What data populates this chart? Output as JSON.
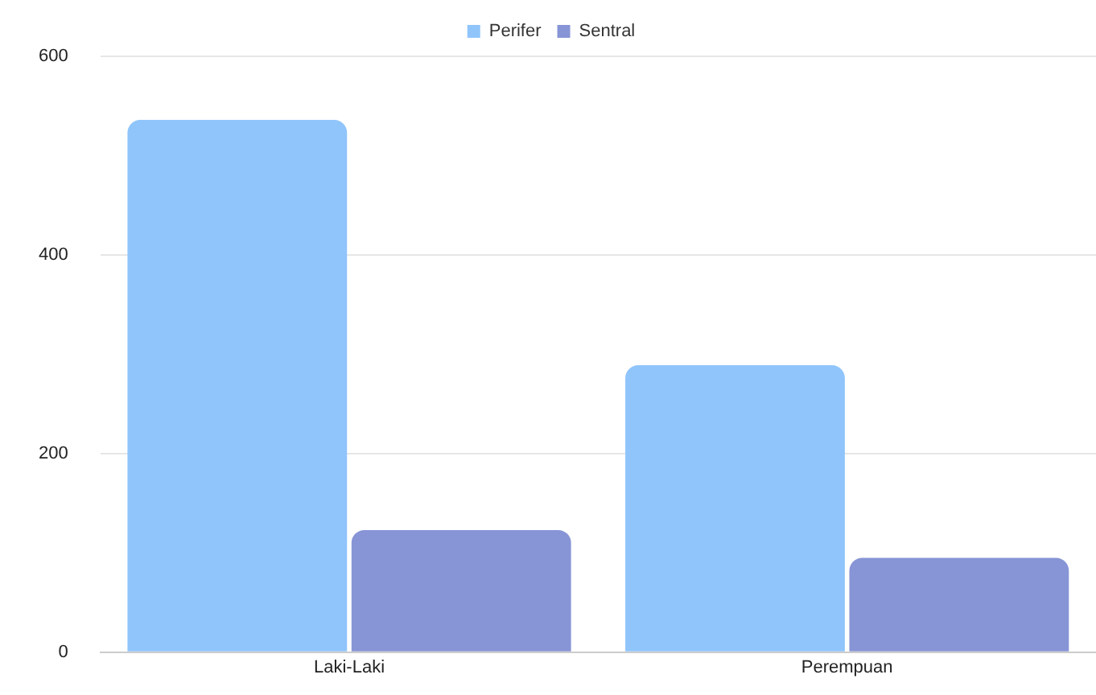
{
  "chart_data": {
    "type": "bar",
    "categories": [
      "Laki-Laki",
      "Perempuan"
    ],
    "series": [
      {
        "name": "Perifer",
        "color": "#90c5fb",
        "values": [
          536,
          289
        ]
      },
      {
        "name": "Sentral",
        "color": "#8795d6",
        "values": [
          123,
          95
        ]
      }
    ],
    "ylim": [
      0,
      600
    ],
    "yticks": [
      0,
      200,
      400,
      600
    ],
    "grid": "y",
    "legend": "top"
  }
}
